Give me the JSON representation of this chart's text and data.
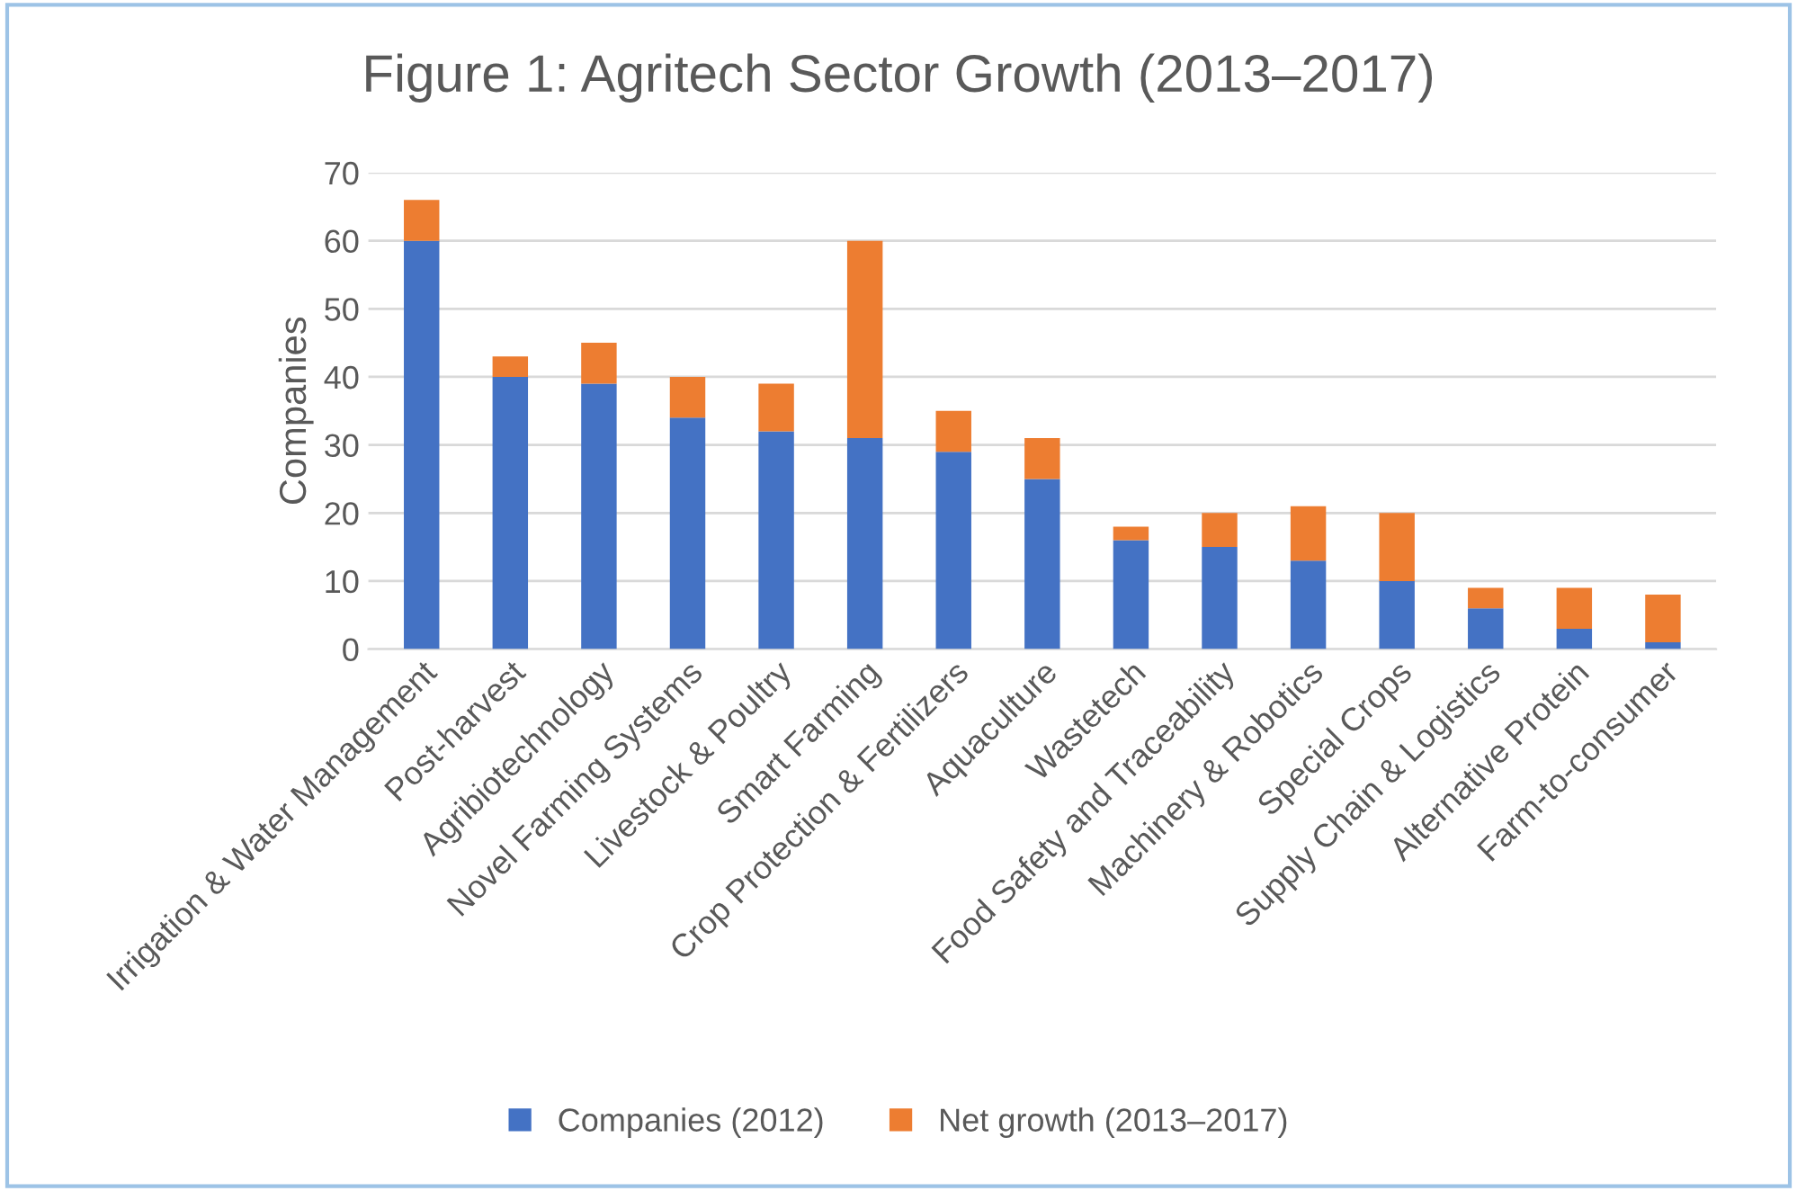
{
  "chart_data": {
    "type": "bar",
    "title": "Figure 1: Agritech Sector Growth (2013–2017)",
    "ylabel": "Companies",
    "categories": [
      "Irrigation & Water Management",
      "Post-harvest",
      "Agribiotechnology",
      "Novel Farming Systems",
      "Livestock & Poultry",
      "Smart Farming",
      "Crop Protection & Fertilizers",
      "Aquaculture",
      "Wastetech",
      "Food Safety and Traceability",
      "Machinery & Robotics",
      "Special Crops",
      "Supply Chain & Logistics",
      "Alternative Protein",
      "Farm-to-consumer"
    ],
    "series": [
      {
        "name": "Companies (2012)",
        "color": "#4472c4",
        "values": [
          60,
          40,
          39,
          34,
          32,
          31,
          29,
          25,
          16,
          15,
          13,
          10,
          6,
          3,
          1
        ]
      },
      {
        "name": "Net growth (2013–2017)",
        "color": "#ed7d31",
        "values": [
          6,
          3,
          6,
          6,
          7,
          29,
          6,
          6,
          2,
          5,
          8,
          10,
          3,
          6,
          7
        ]
      }
    ],
    "stacked": true,
    "ylim": [
      0,
      70
    ],
    "yticks": [
      0,
      10,
      20,
      30,
      40,
      50,
      60,
      70
    ],
    "grid": "y",
    "legend": "bottom"
  }
}
